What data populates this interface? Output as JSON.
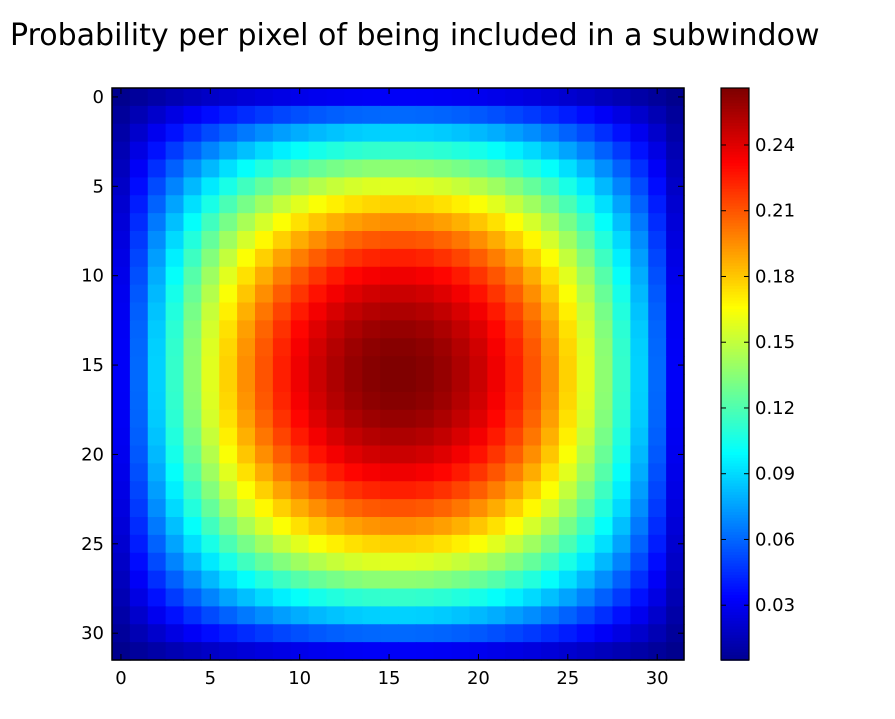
{
  "chart_data": {
    "type": "heatmap",
    "title": "Probability per pixel of being included in a subwindow",
    "grid_size": 32,
    "xlabel": "",
    "ylabel": "",
    "x_ticks": [
      0,
      5,
      10,
      15,
      20,
      25,
      30
    ],
    "y_ticks": [
      0,
      5,
      10,
      15,
      20,
      25,
      30
    ],
    "colorbar": {
      "min": 0.005,
      "max": 0.266,
      "ticks": [
        "0.03",
        "0.06",
        "0.09",
        "0.12",
        "0.15",
        "0.18",
        "0.21",
        "0.24"
      ],
      "colormap": "jet"
    },
    "value_function": "value(i,j) = 0.266 * f(i) * f(j) where f(k) = 4*(k+1)*(32-k)/33^2 approximately; max 0.266 at center, min about 0.005 at corners"
  }
}
